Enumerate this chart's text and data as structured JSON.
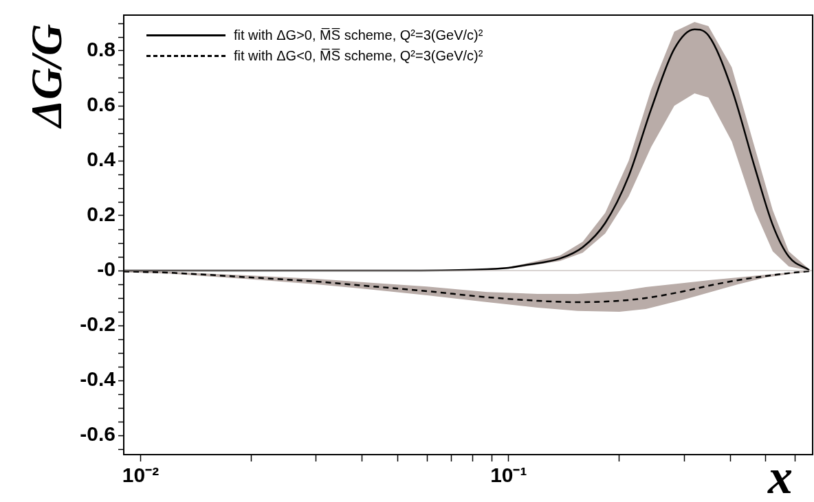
{
  "chart_data": {
    "type": "line",
    "xlabel": "x",
    "ylabel": "ΔG/G",
    "log": "x",
    "grid": false,
    "legend": "top left",
    "marker": "none",
    "xlim": [
      0.009,
      0.67
    ],
    "ylim": [
      -0.67,
      0.93
    ],
    "xticks": [
      {
        "value": 0.01,
        "label": "10⁻²"
      },
      {
        "value": 0.02,
        "label": null
      },
      {
        "value": 0.03,
        "label": null
      },
      {
        "value": 0.04,
        "label": null
      },
      {
        "value": 0.05,
        "label": null
      },
      {
        "value": 0.06,
        "label": null
      },
      {
        "value": 0.07,
        "label": null
      },
      {
        "value": 0.08,
        "label": null
      },
      {
        "value": 0.09,
        "label": null
      },
      {
        "value": 0.1,
        "label": "10⁻¹"
      },
      {
        "value": 0.2,
        "label": null
      },
      {
        "value": 0.3,
        "label": null
      },
      {
        "value": 0.4,
        "label": null
      },
      {
        "value": 0.5,
        "label": null
      },
      {
        "value": 0.6,
        "label": null
      }
    ],
    "yticks": [
      {
        "value": -0.65,
        "label": null
      },
      -0.6,
      {
        "value": -0.55,
        "label": null
      },
      {
        "value": -0.5,
        "label": null
      },
      {
        "value": -0.45,
        "label": null
      },
      -0.4,
      {
        "value": -0.35,
        "label": null
      },
      {
        "value": -0.3,
        "label": null
      },
      {
        "value": -0.25,
        "label": null
      },
      -0.2,
      {
        "value": -0.15,
        "label": null
      },
      {
        "value": -0.1,
        "label": null
      },
      {
        "value": -0.05,
        "label": null
      },
      {
        "value": 0,
        "label": "-0"
      },
      {
        "value": 0.05,
        "label": null
      },
      {
        "value": 0.1,
        "label": null
      },
      {
        "value": 0.15,
        "label": null
      },
      0.2,
      {
        "value": 0.25,
        "label": null
      },
      {
        "value": 0.3,
        "label": null
      },
      {
        "value": 0.35,
        "label": null
      },
      0.4,
      {
        "value": 0.45,
        "label": null
      },
      {
        "value": 0.5,
        "label": null
      },
      {
        "value": 0.55,
        "label": null
      },
      0.6,
      {
        "value": 0.65,
        "label": null
      },
      {
        "value": 0.7,
        "label": null
      },
      {
        "value": 0.75,
        "label": null
      },
      0.8,
      {
        "value": 0.85,
        "label": null
      },
      {
        "value": 0.9,
        "label": null
      }
    ],
    "ref_lines": [
      {
        "axis": "y",
        "value": 0,
        "color": "#b4a9a6"
      }
    ],
    "series": [
      {
        "name": "fit with ΔG>0, M̅S̅ scheme, Q²=3(GeV/c)²",
        "color": "#000000",
        "line_style": "solid",
        "x": [
          0.009,
          0.05,
          0.08,
          0.1,
          0.111,
          0.138,
          0.159,
          0.183,
          0.212,
          0.244,
          0.282,
          0.32,
          0.349,
          0.404,
          0.466,
          0.522,
          0.577,
          0.656
        ],
        "values": [
          0,
          0,
          0.003,
          0.01,
          0.02,
          0.044,
          0.085,
          0.173,
          0.344,
          0.588,
          0.807,
          0.878,
          0.856,
          0.661,
          0.378,
          0.166,
          0.051,
          0.002
        ],
        "upper": [
          0,
          0,
          0.004,
          0.013,
          0.025,
          0.055,
          0.105,
          0.21,
          0.4,
          0.66,
          0.87,
          0.905,
          0.89,
          0.74,
          0.45,
          0.22,
          0.07,
          0.005
        ],
        "lower": [
          0,
          0,
          0.002,
          0.007,
          0.015,
          0.035,
          0.065,
          0.135,
          0.27,
          0.45,
          0.6,
          0.645,
          0.63,
          0.47,
          0.22,
          0.07,
          0.015,
          0
        ]
      },
      {
        "name": "fit with ΔG<0, M̅S̅ scheme, Q²=3(GeV/c)²",
        "color": "#000000",
        "line_style": "dashed",
        "x": [
          0.009,
          0.012,
          0.02,
          0.03,
          0.043,
          0.06,
          0.0875,
          0.12,
          0.154,
          0.2,
          0.236,
          0.3,
          0.35,
          0.42,
          0.5,
          0.6,
          0.66
        ],
        "values": [
          -0.003,
          -0.008,
          -0.025,
          -0.04,
          -0.058,
          -0.075,
          -0.097,
          -0.11,
          -0.115,
          -0.11,
          -0.1,
          -0.075,
          -0.055,
          -0.035,
          -0.02,
          -0.007,
          -0.002
        ],
        "upper": [
          0,
          -0.005,
          -0.018,
          -0.03,
          -0.045,
          -0.058,
          -0.078,
          -0.085,
          -0.085,
          -0.075,
          -0.06,
          -0.045,
          -0.035,
          -0.025,
          -0.015,
          -0.005,
          0
        ],
        "lower": [
          -0.006,
          -0.011,
          -0.032,
          -0.05,
          -0.07,
          -0.09,
          -0.115,
          -0.135,
          -0.147,
          -0.15,
          -0.14,
          -0.105,
          -0.08,
          -0.05,
          -0.025,
          -0.01,
          -0.004
        ]
      }
    ]
  }
}
